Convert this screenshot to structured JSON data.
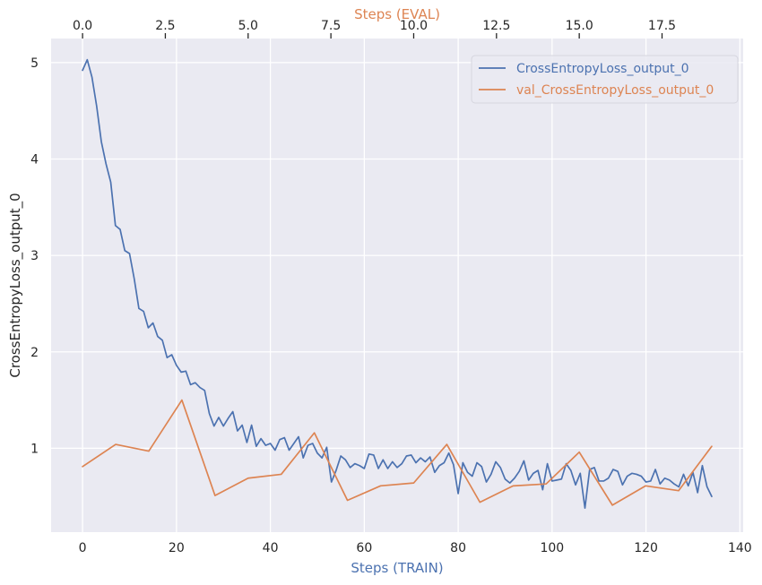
{
  "chart_data": {
    "type": "line",
    "title": "",
    "ylabel": "CrossEntropyLoss_output_0",
    "ylim": [
      0.13,
      5.25
    ],
    "yticks": [
      1,
      2,
      3,
      4,
      5
    ],
    "grid": true,
    "background_color": "#eaeaf2",
    "bottom_axis": {
      "label": "Steps (TRAIN)",
      "color": "#4c72b0",
      "xlim": [
        -6.7,
        140.7
      ],
      "ticks": [
        0,
        20,
        40,
        60,
        80,
        100,
        120,
        140
      ]
    },
    "top_axis": {
      "label": "Steps (EVAL)",
      "color": "#dd8452",
      "xlim": [
        -0.95,
        19.95
      ],
      "ticks": [
        "0.0",
        "2.5",
        "5.0",
        "7.5",
        "10.0",
        "12.5",
        "15.0",
        "17.5"
      ]
    },
    "legend": {
      "position": "top-right",
      "entries": [
        "CrossEntropyLoss_output_0",
        "val_CrossEntropyLoss_output_0"
      ]
    },
    "series": [
      {
        "name": "CrossEntropyLoss_output_0",
        "axis": "bottom",
        "color": "#4c72b0",
        "x": [
          0,
          1,
          2,
          3,
          4,
          5,
          6,
          7,
          8,
          9,
          10,
          11,
          12,
          13,
          14,
          15,
          16,
          17,
          18,
          19,
          20,
          21,
          22,
          23,
          24,
          25,
          26,
          27,
          28,
          29,
          30,
          31,
          32,
          33,
          34,
          35,
          36,
          37,
          38,
          39,
          40,
          41,
          42,
          43,
          44,
          45,
          46,
          47,
          48,
          49,
          50,
          51,
          52,
          53,
          54,
          55,
          56,
          57,
          58,
          59,
          60,
          61,
          62,
          63,
          64,
          65,
          66,
          67,
          68,
          69,
          70,
          71,
          72,
          73,
          74,
          75,
          76,
          77,
          78,
          79,
          80,
          81,
          82,
          83,
          84,
          85,
          86,
          87,
          88,
          89,
          90,
          91,
          92,
          93,
          94,
          95,
          96,
          97,
          98,
          99,
          100,
          101,
          102,
          103,
          104,
          105,
          106,
          107,
          108,
          109,
          110,
          111,
          112,
          113,
          114,
          115,
          116,
          117,
          118,
          119,
          120,
          121,
          122,
          123,
          124,
          125,
          126,
          127,
          128,
          129,
          130,
          131,
          132,
          133,
          134
        ],
        "y": [
          4.92,
          5.03,
          4.85,
          4.55,
          4.18,
          3.95,
          3.76,
          3.31,
          3.27,
          3.05,
          3.02,
          2.76,
          2.45,
          2.42,
          2.25,
          2.3,
          2.16,
          2.12,
          1.94,
          1.97,
          1.86,
          1.79,
          1.8,
          1.66,
          1.68,
          1.63,
          1.6,
          1.36,
          1.23,
          1.32,
          1.23,
          1.31,
          1.38,
          1.18,
          1.24,
          1.06,
          1.24,
          1.02,
          1.1,
          1.03,
          1.05,
          0.98,
          1.09,
          1.11,
          0.98,
          1.05,
          1.12,
          0.9,
          1.03,
          1.05,
          0.95,
          0.9,
          1.01,
          0.65,
          0.77,
          0.92,
          0.88,
          0.8,
          0.84,
          0.82,
          0.79,
          0.94,
          0.93,
          0.79,
          0.88,
          0.79,
          0.86,
          0.8,
          0.84,
          0.92,
          0.93,
          0.85,
          0.9,
          0.86,
          0.91,
          0.75,
          0.82,
          0.85,
          0.95,
          0.83,
          0.53,
          0.85,
          0.75,
          0.71,
          0.85,
          0.81,
          0.65,
          0.73,
          0.86,
          0.8,
          0.68,
          0.64,
          0.69,
          0.76,
          0.87,
          0.67,
          0.74,
          0.77,
          0.57,
          0.84,
          0.66,
          0.67,
          0.68,
          0.84,
          0.77,
          0.62,
          0.74,
          0.38,
          0.78,
          0.8,
          0.66,
          0.66,
          0.69,
          0.78,
          0.76,
          0.62,
          0.71,
          0.74,
          0.73,
          0.71,
          0.65,
          0.66,
          0.78,
          0.63,
          0.69,
          0.67,
          0.63,
          0.6,
          0.73,
          0.61,
          0.75,
          0.54,
          0.82,
          0.6,
          0.5
        ]
      },
      {
        "name": "val_CrossEntropyLoss_output_0",
        "axis": "top",
        "color": "#dd8452",
        "x": [
          0,
          1,
          2,
          3,
          4,
          5,
          6,
          7,
          8,
          9,
          10,
          11,
          12,
          13,
          14,
          15,
          16,
          17,
          18,
          19
        ],
        "y": [
          0.81,
          1.04,
          0.97,
          1.5,
          0.51,
          0.69,
          0.73,
          1.16,
          0.46,
          0.61,
          0.64,
          1.04,
          0.44,
          0.61,
          0.63,
          0.96,
          0.41,
          0.61,
          0.56,
          1.02
        ]
      }
    ]
  }
}
